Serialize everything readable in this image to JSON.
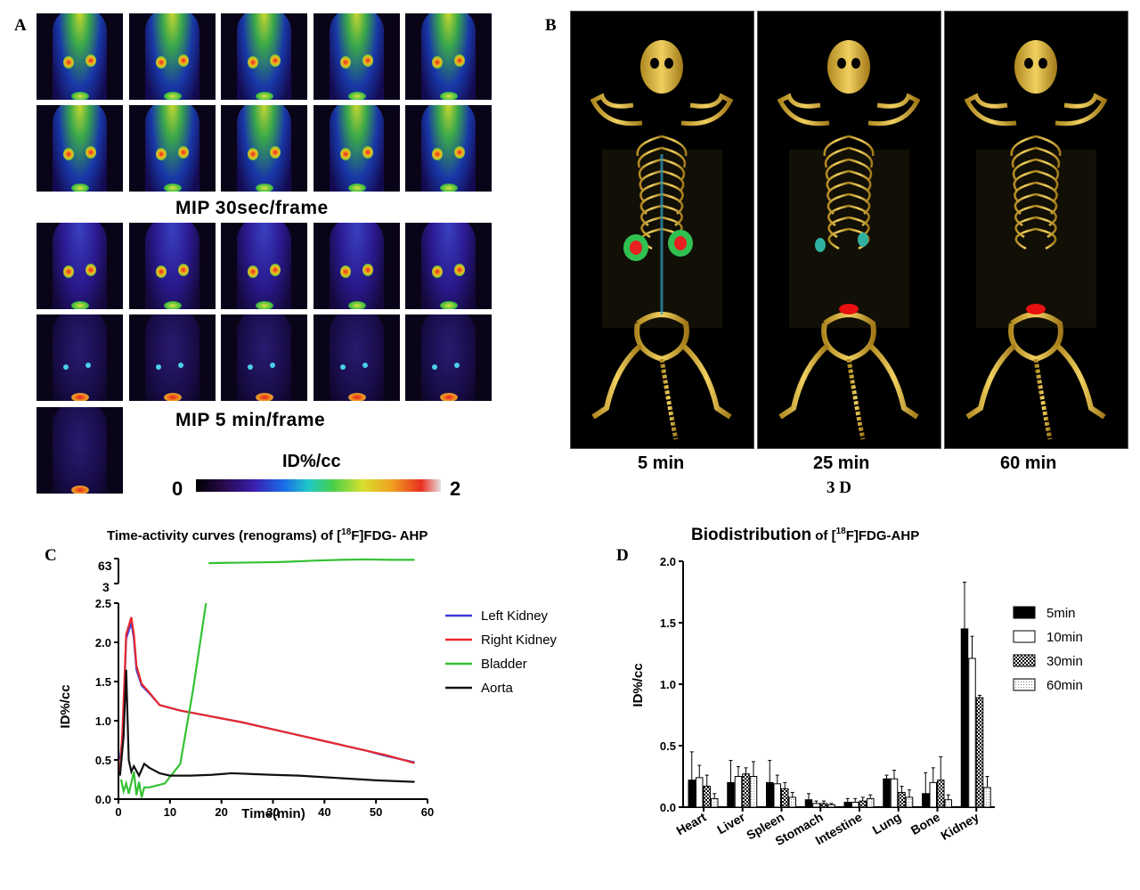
{
  "panelA": {
    "letter": "A",
    "label_30s": "MIP  30sec/frame",
    "label_5min": "MIP  5 min/frame",
    "colorbar_title": "ID%/cc",
    "colorbar_min": "0",
    "colorbar_max": "2"
  },
  "panelB": {
    "letter": "B",
    "times": [
      "5 min",
      "25 min",
      "60 min"
    ],
    "caption": "3 D"
  },
  "panelC": {
    "letter": "C",
    "title_prefix": "Time-activity curves (renograms) of [",
    "title_sup": "18",
    "title_suffix": "F]FDG- AHP",
    "xlabel": "Time(min)",
    "ylabel": "ID%/cc",
    "break_labels": [
      "63",
      "3"
    ]
  },
  "panelD": {
    "letter": "D",
    "title_main": "Biodistribution",
    "title_prefix": " of [",
    "title_sup": "18",
    "title_suffix": "F]FDG-AHP",
    "ylabel": "ID%/cc"
  },
  "colors": {
    "left_kidney": "#3b3bdc",
    "right_kidney": "#e8282c",
    "bladder": "#33c233",
    "aorta": "#111111"
  },
  "chart_data": [
    {
      "type": "line",
      "title": "Time-activity curves (renograms) of [18F]FDG- AHP",
      "xlabel": "Time(min)",
      "ylabel": "ID%/cc",
      "xlim": [
        0,
        60
      ],
      "ylim": [
        0,
        2.5
      ],
      "ylim_upper_break": [
        3,
        63
      ],
      "xticks": [
        "0",
        "10",
        "20",
        "30",
        "40",
        "50",
        "60"
      ],
      "yticks": [
        "0.0",
        "0.5",
        "1.0",
        "1.5",
        "2.0",
        "2.5"
      ],
      "legend_position": "right",
      "series": [
        {
          "name": "Left Kidney",
          "x": [
            0.3,
            0.8,
            1.5,
            2.5,
            3.0,
            3.5,
            4.5,
            6,
            8,
            12,
            16,
            20,
            24,
            28,
            32,
            36,
            40,
            44,
            48,
            52,
            57.5
          ],
          "y": [
            0.5,
            0.8,
            2.05,
            2.25,
            2.05,
            1.65,
            1.45,
            1.35,
            1.2,
            1.13,
            1.08,
            1.03,
            0.98,
            0.92,
            0.86,
            0.8,
            0.74,
            0.68,
            0.62,
            0.55,
            0.47
          ]
        },
        {
          "name": "Right Kidney",
          "x": [
            0.3,
            0.8,
            1.5,
            2.5,
            3.0,
            3.5,
            4.5,
            6,
            8,
            12,
            16,
            20,
            24,
            28,
            32,
            36,
            40,
            44,
            48,
            52,
            57.5
          ],
          "y": [
            0.35,
            0.9,
            2.1,
            2.32,
            2.1,
            1.7,
            1.47,
            1.36,
            1.2,
            1.13,
            1.08,
            1.03,
            0.98,
            0.92,
            0.86,
            0.8,
            0.74,
            0.68,
            0.62,
            0.56,
            0.46
          ]
        },
        {
          "name": "Bladder",
          "x": [
            0.5,
            1,
            1.5,
            2,
            3,
            3.5,
            4,
            4.5,
            5,
            6,
            9,
            12,
            14.5,
            17
          ],
          "y": [
            0.25,
            0.1,
            0.2,
            0.07,
            0.35,
            0.05,
            0.22,
            0.02,
            0.15,
            0.15,
            0.2,
            0.45,
            1.4,
            2.5
          ]
        },
        {
          "name": "Bladder",
          "x": [
            17.5,
            22,
            28,
            32,
            38,
            43,
            48,
            53,
            57.5
          ],
          "y": [
            52,
            53,
            54,
            55,
            58,
            60,
            61,
            60,
            60
          ]
        },
        {
          "name": "Aorta",
          "x": [
            0.3,
            1,
            1.5,
            2,
            2.5,
            3,
            4,
            5,
            6,
            8,
            10,
            14,
            18,
            22,
            26,
            30,
            35,
            40,
            45,
            50,
            57.5
          ],
          "y": [
            0.3,
            0.8,
            1.65,
            0.5,
            0.35,
            0.42,
            0.3,
            0.45,
            0.4,
            0.33,
            0.3,
            0.3,
            0.31,
            0.33,
            0.32,
            0.31,
            0.3,
            0.28,
            0.26,
            0.24,
            0.22
          ]
        }
      ]
    },
    {
      "type": "bar",
      "title": "Biodistribution of [18F]FDG-AHP",
      "ylabel": "ID%/cc",
      "ylim": [
        0,
        2.0
      ],
      "yticks": [
        "0.0",
        "0.5",
        "1.0",
        "1.5",
        "2.0"
      ],
      "categories": [
        "Heart",
        "Liver",
        "Spleen",
        "Stomach",
        "Intestine",
        "Lung",
        "Bone",
        "Kidney"
      ],
      "legend_position": "right",
      "series": [
        {
          "name": "5min",
          "values": [
            0.22,
            0.2,
            0.2,
            0.06,
            0.04,
            0.23,
            0.11,
            1.45
          ],
          "errors": [
            0.23,
            0.18,
            0.18,
            0.05,
            0.03,
            0.03,
            0.17,
            0.38
          ]
        },
        {
          "name": "10min",
          "values": [
            0.24,
            0.25,
            0.19,
            0.03,
            0.04,
            0.23,
            0.2,
            1.21
          ],
          "errors": [
            0.1,
            0.08,
            0.07,
            0.02,
            0.03,
            0.07,
            0.12,
            0.18
          ]
        },
        {
          "name": "30min",
          "values": [
            0.17,
            0.27,
            0.15,
            0.03,
            0.05,
            0.12,
            0.22,
            0.89
          ],
          "errors": [
            0.09,
            0.05,
            0.05,
            0.02,
            0.03,
            0.05,
            0.19,
            0.02
          ]
        },
        {
          "name": "60min",
          "values": [
            0.07,
            0.25,
            0.08,
            0.02,
            0.07,
            0.08,
            0.06,
            0.16
          ],
          "errors": [
            0.04,
            0.12,
            0.04,
            0.01,
            0.03,
            0.06,
            0.04,
            0.09
          ]
        }
      ]
    }
  ]
}
